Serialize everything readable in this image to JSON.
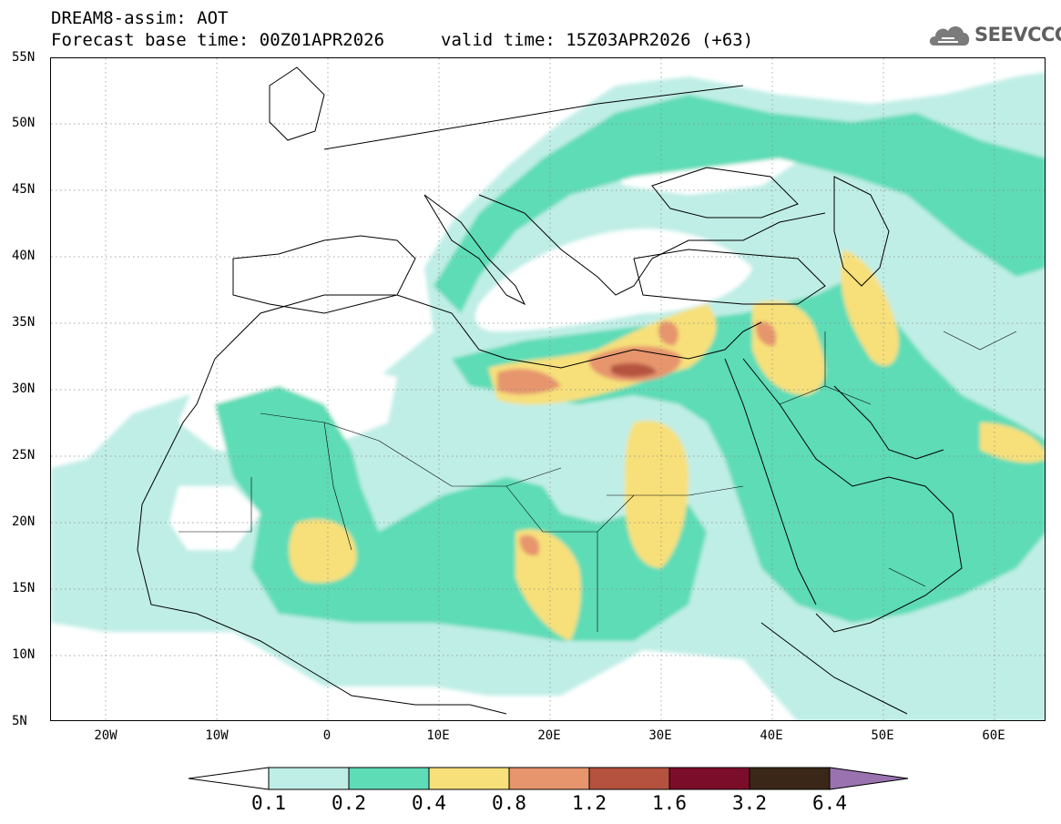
{
  "header": {
    "title_line1": "DREAM8-assim: AOT",
    "title_line2": "Forecast base time: 00Z01APR2026",
    "valid_time": "valid time: 15Z03APR2026 (+63)",
    "logo_text": "SEEVCCC",
    "logo_icon": "cloud-icon"
  },
  "map": {
    "lat_labels": [
      "55N",
      "50N",
      "45N",
      "40N",
      "35N",
      "30N",
      "25N",
      "20N",
      "15N",
      "10N",
      "5N"
    ],
    "lon_labels": [
      "20W",
      "10W",
      "0",
      "10E",
      "20E",
      "30E",
      "40E",
      "50E",
      "60E"
    ],
    "background": "#ffffff"
  },
  "colorbar": {
    "ticks": [
      "0.1",
      "0.2",
      "0.4",
      "0.8",
      "1.2",
      "1.6",
      "3.2",
      "6.4"
    ],
    "colors": {
      "below": "#ffffff",
      "c1": "#bfeee6",
      "c2": "#5ddcb6",
      "c3": "#f7e07a",
      "c4": "#e6956d",
      "c5": "#b5523f",
      "c6": "#7c0d2a",
      "c7": "#3a2718",
      "above": "#9a72b0"
    }
  }
}
